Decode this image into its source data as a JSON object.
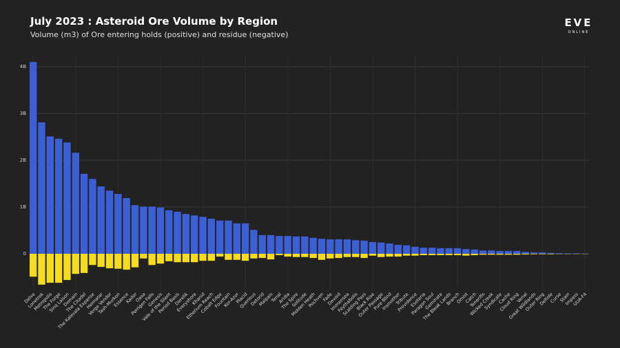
{
  "logo": {
    "name": "EVE",
    "sub": "ONLINE"
  },
  "chart_data": {
    "type": "bar",
    "stacked": true,
    "title": "July 2023 : Asteroid Ore Volume by Region",
    "subtitle": "Volume (m3) of Ore entering holds (positive) and residue (negative)",
    "categories": [
      "Delve",
      "Lonetrek",
      "Metropolis",
      "The Forge",
      "Sinq Laison",
      "Domain",
      "The Citadel",
      "The Kalevala Expanse",
      "Heimatar",
      "Verge Vendor",
      "Tash-Murkon",
      "Essence",
      "Kador",
      "Oasa",
      "Perrigen Falls",
      "Genesis",
      "Vale of the Silent",
      "Period Basis",
      "Derelik",
      "Everyshore",
      "Khanid",
      "Etherium Reach",
      "Cobalt Edge",
      "Fountain",
      "Kor-Azor",
      "Placid",
      "Querious",
      "Detorid",
      "Malpais",
      "Tenal",
      "Aridia",
      "The Spire",
      "Solitude",
      "Molden Heath",
      "Pochven",
      "Fade",
      "Devoid",
      "Immensea",
      "Feythabolis",
      "Scalding Pass",
      "Black Rise",
      "Outer Passage",
      "Pure Blind",
      "Insmother",
      "Tribute",
      "Providence",
      "Esoteria",
      "Paragon Soul",
      "Geminate",
      "The Bleak Lands",
      "Branch",
      "Omist",
      "Catch",
      "Tenerifis",
      "Wicked Creek",
      "Syndicate",
      "Cache",
      "Cloud Ring",
      "Venal",
      "Great Wildlands",
      "Outer Ring",
      "Deltole",
      "Curse",
      "Stain",
      "Impass",
      "UUA-F4"
    ],
    "series": [
      {
        "color": "#3d5fd6",
        "values": [
          4100000000.0,
          2810000000.0,
          2510000000.0,
          2460000000.0,
          2380000000.0,
          2160000000.0,
          1710000000.0,
          1600000000.0,
          1440000000.0,
          1350000000.0,
          1280000000.0,
          1190000000.0,
          1040000000.0,
          1010000000.0,
          1010000000.0,
          990000000.0,
          930000000.0,
          900000000.0,
          850000000.0,
          820000000.0,
          790000000.0,
          750000000.0,
          710000000.0,
          710000000.0,
          650000000.0,
          650000000.0,
          510000000.0,
          400000000.0,
          400000000.0,
          380000000.0,
          380000000.0,
          370000000.0,
          370000000.0,
          340000000.0,
          320000000.0,
          310000000.0,
          310000000.0,
          310000000.0,
          290000000.0,
          280000000.0,
          250000000.0,
          240000000.0,
          220000000.0,
          190000000.0,
          180000000.0,
          150000000.0,
          130000000.0,
          130000000.0,
          120000000.0,
          120000000.0,
          120000000.0,
          100000000.0,
          90000000.0,
          70000000.0,
          70000000.0,
          60000000.0,
          60000000.0,
          60000000.0,
          40000000.0,
          30000000.0,
          30000000.0,
          20000000.0,
          15000000.0,
          10000000.0,
          10000000.0,
          5000000.0
        ]
      },
      {
        "color": "#f5dc1e",
        "values": [
          -490000000.0,
          -660000000.0,
          -620000000.0,
          -620000000.0,
          -560000000.0,
          -430000000.0,
          -410000000.0,
          -240000000.0,
          -280000000.0,
          -310000000.0,
          -320000000.0,
          -340000000.0,
          -290000000.0,
          -100000000.0,
          -240000000.0,
          -210000000.0,
          -160000000.0,
          -180000000.0,
          -180000000.0,
          -180000000.0,
          -150000000.0,
          -150000000.0,
          -60000000.0,
          -130000000.0,
          -130000000.0,
          -150000000.0,
          -100000000.0,
          -90000000.0,
          -120000000.0,
          -30000000.0,
          -60000000.0,
          -70000000.0,
          -70000000.0,
          -90000000.0,
          -130000000.0,
          -100000000.0,
          -90000000.0,
          -70000000.0,
          -70000000.0,
          -90000000.0,
          -40000000.0,
          -70000000.0,
          -60000000.0,
          -60000000.0,
          -40000000.0,
          -40000000.0,
          -30000000.0,
          -30000000.0,
          -30000000.0,
          -30000000.0,
          -30000000.0,
          -40000000.0,
          -30000000.0,
          -20000000.0,
          -20000000.0,
          -20000000.0,
          -20000000.0,
          -20000000.0,
          -15000000.0,
          -10000000.0,
          -10000000.0,
          -10000000.0,
          -5000000.0,
          -5000000.0,
          -5000000.0,
          -5000000.0
        ]
      }
    ],
    "ylim": [
      -750000000.0,
      4250000000.0
    ],
    "yticks": [
      0,
      {
        "value": 1000000000.0,
        "label": "1B"
      },
      {
        "value": 2000000000.0,
        "label": "2B"
      },
      {
        "value": 3000000000.0,
        "label": "3B"
      },
      {
        "value": 4000000000.0,
        "label": "4B"
      }
    ],
    "grid": true
  }
}
